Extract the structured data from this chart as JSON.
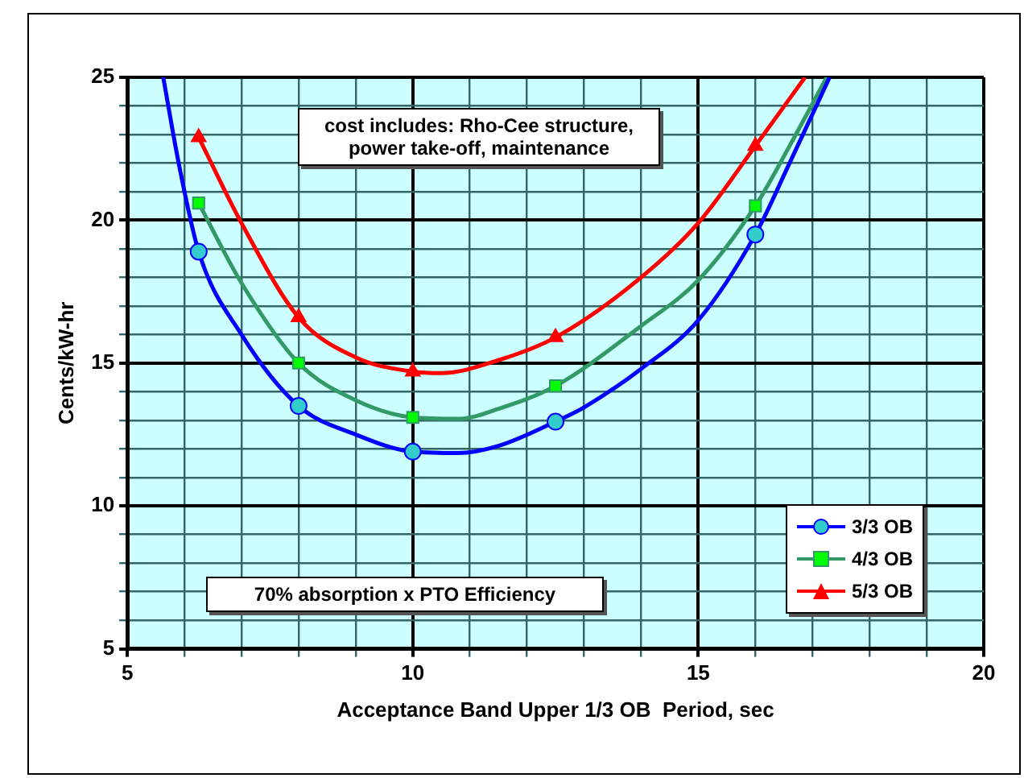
{
  "chart_data": {
    "type": "line",
    "xlabel": "Acceptance Band Upper 1/3 OB  Period, sec",
    "ylabel": "Cents/kW-hr",
    "xlim": [
      5,
      20
    ],
    "ylim": [
      5,
      25
    ],
    "xticks": [
      5,
      {
        "value": 6,
        "label": null
      },
      {
        "value": 7,
        "label": null
      },
      {
        "value": 8,
        "label": null
      },
      {
        "value": 9,
        "label": null
      },
      10,
      {
        "value": 11,
        "label": null
      },
      {
        "value": 12,
        "label": null
      },
      {
        "value": 13,
        "label": null
      },
      {
        "value": 14,
        "label": null
      },
      15,
      {
        "value": 16,
        "label": null
      },
      {
        "value": 17,
        "label": null
      },
      {
        "value": 18,
        "label": null
      },
      {
        "value": 19,
        "label": null
      },
      20
    ],
    "yticks": [
      5,
      {
        "value": 6,
        "label": null
      },
      {
        "value": 7,
        "label": null
      },
      {
        "value": 8,
        "label": null
      },
      {
        "value": 9,
        "label": null
      },
      10,
      {
        "value": 11,
        "label": null
      },
      {
        "value": 12,
        "label": null
      },
      {
        "value": 13,
        "label": null
      },
      {
        "value": 14,
        "label": null
      },
      15,
      {
        "value": 16,
        "label": null
      },
      {
        "value": 17,
        "label": null
      },
      {
        "value": 18,
        "label": null
      },
      {
        "value": 19,
        "label": null
      },
      20,
      {
        "value": 21,
        "label": null
      },
      {
        "value": 22,
        "label": null
      },
      {
        "value": 23,
        "label": null
      },
      {
        "value": 24,
        "label": null
      },
      25
    ],
    "grid": true,
    "legend": "bottom right",
    "line_style": "solid",
    "annotations": [
      "cost includes: Rho-Cee structure, power take-off, maintenance",
      "70% absorption x PTO Efficiency"
    ],
    "series": [
      {
        "name": "3/3 OB",
        "color": "#0000ff",
        "marker": "none",
        "x": [
          5.63,
          5.9,
          6.25,
          7,
          8,
          9,
          10,
          10.8,
          11.5,
          12.5,
          13,
          14,
          15,
          16,
          16.6,
          17.3
        ],
        "values": [
          25,
          22,
          18.9,
          16,
          13.5,
          12.5,
          11.9,
          11.85,
          12.1,
          12.95,
          13.45,
          14.8,
          16.5,
          19.5,
          22,
          25
        ]
      },
      {
        "name": "4/3 OB",
        "color": "#339966",
        "marker": "none",
        "x": [
          6.25,
          7,
          8,
          9,
          10,
          10.8,
          11.5,
          12.5,
          14,
          15,
          16,
          16.6,
          17.25
        ],
        "values": [
          20.6,
          17.8,
          15,
          13.7,
          13.1,
          13.05,
          13.4,
          14.2,
          16.3,
          17.9,
          20.5,
          22.6,
          25
        ]
      },
      {
        "name": "5/3 OB",
        "color": "#ff0000",
        "marker": "none",
        "x": [
          6.25,
          7,
          8,
          9,
          10,
          10.5,
          11.5,
          12.5,
          14,
          15,
          16,
          16.87
        ],
        "values": [
          22.9,
          19.9,
          16.6,
          15.2,
          14.7,
          14.65,
          15.1,
          15.9,
          18,
          19.9,
          22.6,
          25
        ]
      },
      {
        "type": "scatter",
        "color": "#33cccc",
        "marker": "circle",
        "x": [
          6.25,
          8,
          10,
          12.5,
          16
        ],
        "values": [
          18.9,
          13.5,
          11.9,
          12.95,
          19.5
        ]
      },
      {
        "type": "scatter",
        "color": "#00ff00",
        "marker": "square",
        "x": [
          6.25,
          8,
          10,
          12.5,
          16
        ],
        "values": [
          20.6,
          15,
          13.1,
          14.2,
          20.5
        ]
      },
      {
        "type": "scatter",
        "color": "#ff0000",
        "marker": "triangle",
        "x": [
          6.25,
          8,
          10,
          12.5,
          16
        ],
        "values": [
          22.9,
          16.6,
          14.7,
          15.9,
          22.6
        ]
      }
    ]
  }
}
